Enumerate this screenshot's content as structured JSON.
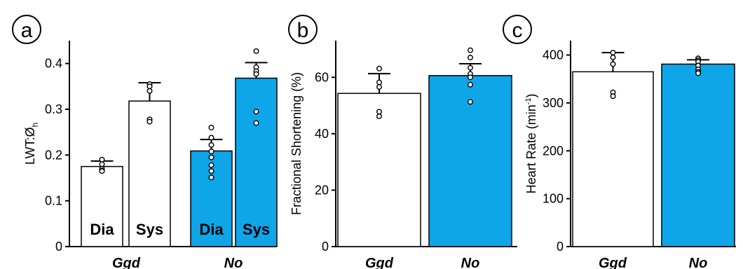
{
  "colors": {
    "white_bar": "#ffffff",
    "blue_bar": "#0ea5e9",
    "stroke": "#000000"
  },
  "panels": [
    {
      "letter": "a"
    },
    {
      "letter": "b"
    },
    {
      "letter": "c"
    }
  ],
  "chart_data": [
    {
      "type": "bar",
      "panel": "a",
      "ylabel_main": "LWT:Ø",
      "ylabel_sub": "h",
      "ylim": [
        0,
        0.45
      ],
      "yticks": [
        "0",
        "0.1",
        "0.2",
        "0.3",
        "0.4"
      ],
      "groups": [
        "Ggd",
        "No"
      ],
      "bars": [
        {
          "group": "Ggd",
          "label": "Dia",
          "fill": "white",
          "value": 0.175,
          "err": 0.012,
          "points": [
            0.19,
            0.18,
            0.17,
            0.166,
            0.165
          ]
        },
        {
          "group": "Ggd",
          "label": "Sys",
          "fill": "white",
          "value": 0.318,
          "err": 0.04,
          "points": [
            0.355,
            0.35,
            0.34,
            0.278,
            0.273
          ]
        },
        {
          "group": "No",
          "label": "Dia",
          "fill": "blue",
          "value": 0.209,
          "err": 0.025,
          "points": [
            0.26,
            0.238,
            0.222,
            0.208,
            0.195,
            0.178,
            0.165,
            0.151
          ]
        },
        {
          "group": "No",
          "label": "Sys",
          "fill": "blue",
          "value": 0.368,
          "err": 0.034,
          "points": [
            0.427,
            0.392,
            0.383,
            0.377,
            0.295,
            0.27
          ]
        }
      ]
    },
    {
      "type": "bar",
      "panel": "b",
      "ylabel": "Fractional Shortening (%)",
      "ylim": [
        0,
        73
      ],
      "yticks": [
        "0",
        "20",
        "40",
        "60"
      ],
      "categories": [
        "Ggd",
        "No"
      ],
      "bars": [
        {
          "category": "Ggd",
          "fill": "white",
          "value": 54.3,
          "err": 7.0,
          "points": [
            63.1,
            58.2,
            56.6,
            47.8,
            46.2
          ]
        },
        {
          "category": "No",
          "fill": "blue",
          "value": 60.6,
          "err": 4.2,
          "points": [
            69.6,
            67.0,
            63.4,
            61.2,
            60.0,
            57.4,
            51.3
          ]
        }
      ]
    },
    {
      "type": "bar",
      "panel": "c",
      "ylabel_main": "Heart Rate (min",
      "ylabel_sup": "-1",
      "ylabel_end": ")",
      "ylim": [
        0,
        430
      ],
      "yticks": [
        "0",
        "100",
        "200",
        "300",
        "400"
      ],
      "categories": [
        "Ggd",
        "No"
      ],
      "bars": [
        {
          "category": "Ggd",
          "fill": "white",
          "value": 365,
          "err": 40,
          "points": [
            405,
            395,
            381,
            322,
            314
          ]
        },
        {
          "category": "No",
          "fill": "blue",
          "value": 381,
          "err": 9,
          "points": [
            393,
            389,
            386,
            378,
            370,
            365,
            362
          ]
        }
      ]
    }
  ]
}
